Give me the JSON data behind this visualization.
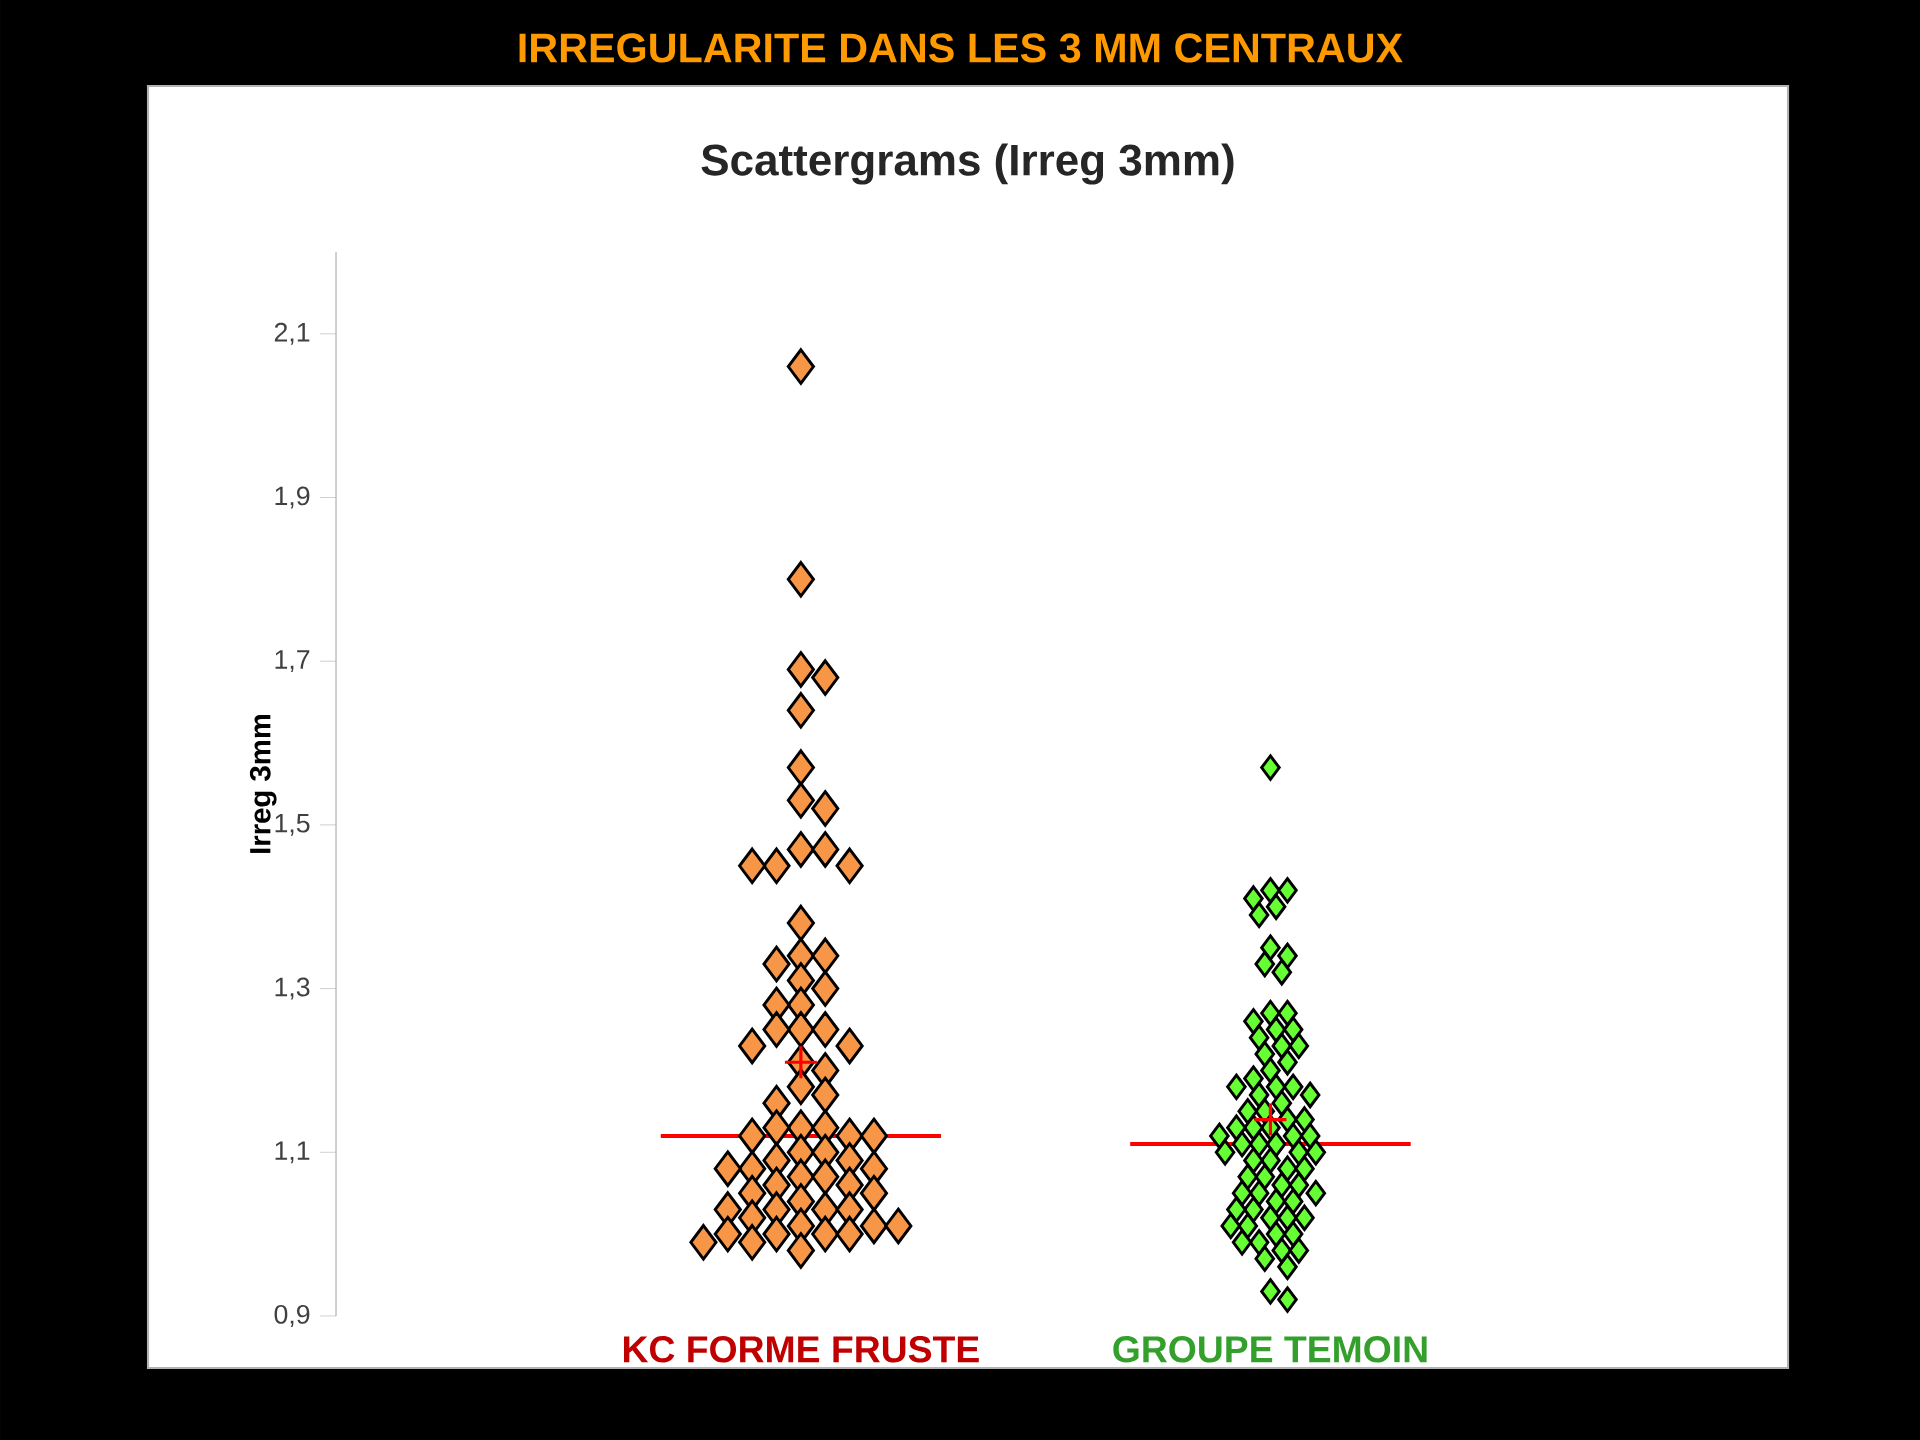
{
  "chart_data": {
    "type": "scatter",
    "title": "IRREGULARITE DANS LES 3 MM CENTRAUX",
    "subtitle": "Scattergrams (Irreg 3mm)",
    "ylabel": "Irreg 3mm",
    "categories": [
      "KC FORME FRUSTE",
      "GROUPE TEMOIN"
    ],
    "ylim": [
      0.9,
      2.2
    ],
    "yticks": [
      {
        "value": 0.9,
        "label": "0,9"
      },
      {
        "value": 1.1,
        "label": "1,1"
      },
      {
        "value": 1.3,
        "label": "1,3"
      },
      {
        "value": 1.5,
        "label": "1,5"
      },
      {
        "value": 1.7,
        "label": "1,7"
      },
      {
        "value": 1.9,
        "label": "1,9"
      },
      {
        "value": 2.1,
        "label": "2,1"
      }
    ],
    "grid": false,
    "series": [
      {
        "marker": "diamond",
        "color": "#f79646",
        "x": [
          "KC FORME FRUSTE",
          "KC FORME FRUSTE",
          "KC FORME FRUSTE",
          "KC FORME FRUSTE",
          "KC FORME FRUSTE",
          "KC FORME FRUSTE",
          "KC FORME FRUSTE",
          "KC FORME FRUSTE",
          "KC FORME FRUSTE",
          "KC FORME FRUSTE",
          "KC FORME FRUSTE",
          "KC FORME FRUSTE",
          "KC FORME FRUSTE",
          "KC FORME FRUSTE",
          "KC FORME FRUSTE",
          "KC FORME FRUSTE",
          "KC FORME FRUSTE",
          "KC FORME FRUSTE",
          "KC FORME FRUSTE",
          "KC FORME FRUSTE",
          "KC FORME FRUSTE",
          "KC FORME FRUSTE",
          "KC FORME FRUSTE",
          "KC FORME FRUSTE",
          "KC FORME FRUSTE",
          "KC FORME FRUSTE",
          "KC FORME FRUSTE",
          "KC FORME FRUSTE",
          "KC FORME FRUSTE",
          "KC FORME FRUSTE",
          "KC FORME FRUSTE",
          "KC FORME FRUSTE",
          "KC FORME FRUSTE",
          "KC FORME FRUSTE",
          "KC FORME FRUSTE",
          "KC FORME FRUSTE",
          "KC FORME FRUSTE",
          "KC FORME FRUSTE",
          "KC FORME FRUSTE",
          "KC FORME FRUSTE",
          "KC FORME FRUSTE",
          "KC FORME FRUSTE",
          "KC FORME FRUSTE",
          "KC FORME FRUSTE",
          "KC FORME FRUSTE",
          "KC FORME FRUSTE",
          "KC FORME FRUSTE",
          "KC FORME FRUSTE",
          "KC FORME FRUSTE",
          "KC FORME FRUSTE",
          "KC FORME FRUSTE",
          "KC FORME FRUSTE",
          "KC FORME FRUSTE",
          "KC FORME FRUSTE",
          "KC FORME FRUSTE",
          "KC FORME FRUSTE",
          "KC FORME FRUSTE",
          "KC FORME FRUSTE",
          "KC FORME FRUSTE",
          "KC FORME FRUSTE",
          "KC FORME FRUSTE",
          "KC FORME FRUSTE",
          "KC FORME FRUSTE",
          "KC FORME FRUSTE",
          "KC FORME FRUSTE",
          "KC FORME FRUSTE"
        ],
        "values": [
          2.06,
          1.8,
          1.69,
          1.68,
          1.64,
          1.57,
          1.53,
          1.52,
          1.47,
          1.47,
          1.45,
          1.45,
          1.45,
          1.38,
          1.34,
          1.34,
          1.33,
          1.31,
          1.3,
          1.28,
          1.28,
          1.25,
          1.25,
          1.25,
          1.23,
          1.23,
          1.21,
          1.2,
          1.18,
          1.17,
          1.16,
          1.13,
          1.13,
          1.13,
          1.12,
          1.12,
          1.12,
          1.1,
          1.1,
          1.09,
          1.09,
          1.08,
          1.08,
          1.08,
          1.07,
          1.07,
          1.06,
          1.06,
          1.05,
          1.05,
          1.04,
          1.03,
          1.03,
          1.03,
          1.03,
          1.02,
          1.01,
          1.01,
          1.01,
          1.0,
          1.0,
          1.0,
          1.0,
          0.99,
          0.99,
          0.98
        ]
      },
      {
        "marker": "diamond",
        "color": "#66ff33",
        "x": [
          "GROUPE TEMOIN",
          "GROUPE TEMOIN",
          "GROUPE TEMOIN",
          "GROUPE TEMOIN",
          "GROUPE TEMOIN",
          "GROUPE TEMOIN",
          "GROUPE TEMOIN",
          "GROUPE TEMOIN",
          "GROUPE TEMOIN",
          "GROUPE TEMOIN",
          "GROUPE TEMOIN",
          "GROUPE TEMOIN",
          "GROUPE TEMOIN",
          "GROUPE TEMOIN",
          "GROUPE TEMOIN",
          "GROUPE TEMOIN",
          "GROUPE TEMOIN",
          "GROUPE TEMOIN",
          "GROUPE TEMOIN",
          "GROUPE TEMOIN",
          "GROUPE TEMOIN",
          "GROUPE TEMOIN",
          "GROUPE TEMOIN",
          "GROUPE TEMOIN",
          "GROUPE TEMOIN",
          "GROUPE TEMOIN",
          "GROUPE TEMOIN",
          "GROUPE TEMOIN",
          "GROUPE TEMOIN",
          "GROUPE TEMOIN",
          "GROUPE TEMOIN",
          "GROUPE TEMOIN",
          "GROUPE TEMOIN",
          "GROUPE TEMOIN",
          "GROUPE TEMOIN",
          "GROUPE TEMOIN",
          "GROUPE TEMOIN",
          "GROUPE TEMOIN",
          "GROUPE TEMOIN",
          "GROUPE TEMOIN",
          "GROUPE TEMOIN",
          "GROUPE TEMOIN",
          "GROUPE TEMOIN",
          "GROUPE TEMOIN",
          "GROUPE TEMOIN",
          "GROUPE TEMOIN",
          "GROUPE TEMOIN",
          "GROUPE TEMOIN",
          "GROUPE TEMOIN",
          "GROUPE TEMOIN",
          "GROUPE TEMOIN",
          "GROUPE TEMOIN",
          "GROUPE TEMOIN",
          "GROUPE TEMOIN",
          "GROUPE TEMOIN",
          "GROUPE TEMOIN",
          "GROUPE TEMOIN",
          "GROUPE TEMOIN",
          "GROUPE TEMOIN",
          "GROUPE TEMOIN",
          "GROUPE TEMOIN",
          "GROUPE TEMOIN",
          "GROUPE TEMOIN",
          "GROUPE TEMOIN",
          "GROUPE TEMOIN",
          "GROUPE TEMOIN",
          "GROUPE TEMOIN",
          "GROUPE TEMOIN",
          "GROUPE TEMOIN",
          "GROUPE TEMOIN",
          "GROUPE TEMOIN",
          "GROUPE TEMOIN",
          "GROUPE TEMOIN",
          "GROUPE TEMOIN"
        ],
        "values": [
          1.57,
          1.42,
          1.42,
          1.41,
          1.4,
          1.39,
          1.35,
          1.34,
          1.33,
          1.32,
          1.27,
          1.27,
          1.26,
          1.25,
          1.25,
          1.24,
          1.23,
          1.23,
          1.22,
          1.21,
          1.2,
          1.19,
          1.18,
          1.18,
          1.18,
          1.17,
          1.17,
          1.16,
          1.15,
          1.15,
          1.14,
          1.14,
          1.13,
          1.13,
          1.13,
          1.12,
          1.12,
          1.12,
          1.11,
          1.11,
          1.11,
          1.1,
          1.1,
          1.1,
          1.09,
          1.09,
          1.08,
          1.08,
          1.07,
          1.07,
          1.06,
          1.06,
          1.05,
          1.05,
          1.05,
          1.04,
          1.04,
          1.03,
          1.03,
          1.02,
          1.02,
          1.02,
          1.01,
          1.01,
          1.0,
          1.0,
          0.99,
          0.99,
          0.98,
          0.98,
          0.97,
          0.96,
          0.93,
          0.92
        ]
      },
      {
        "type": "box",
        "color": "#ff0000",
        "boxes": [
          {
            "q1": 1.12,
            "median": 1.12,
            "q3": 1.12
          },
          {
            "q1": 1.11,
            "median": 1.11,
            "q3": 1.11
          }
        ]
      },
      {
        "marker": "cross",
        "color": "#ff0000",
        "values": [
          1.21,
          1.14
        ]
      }
    ]
  }
}
